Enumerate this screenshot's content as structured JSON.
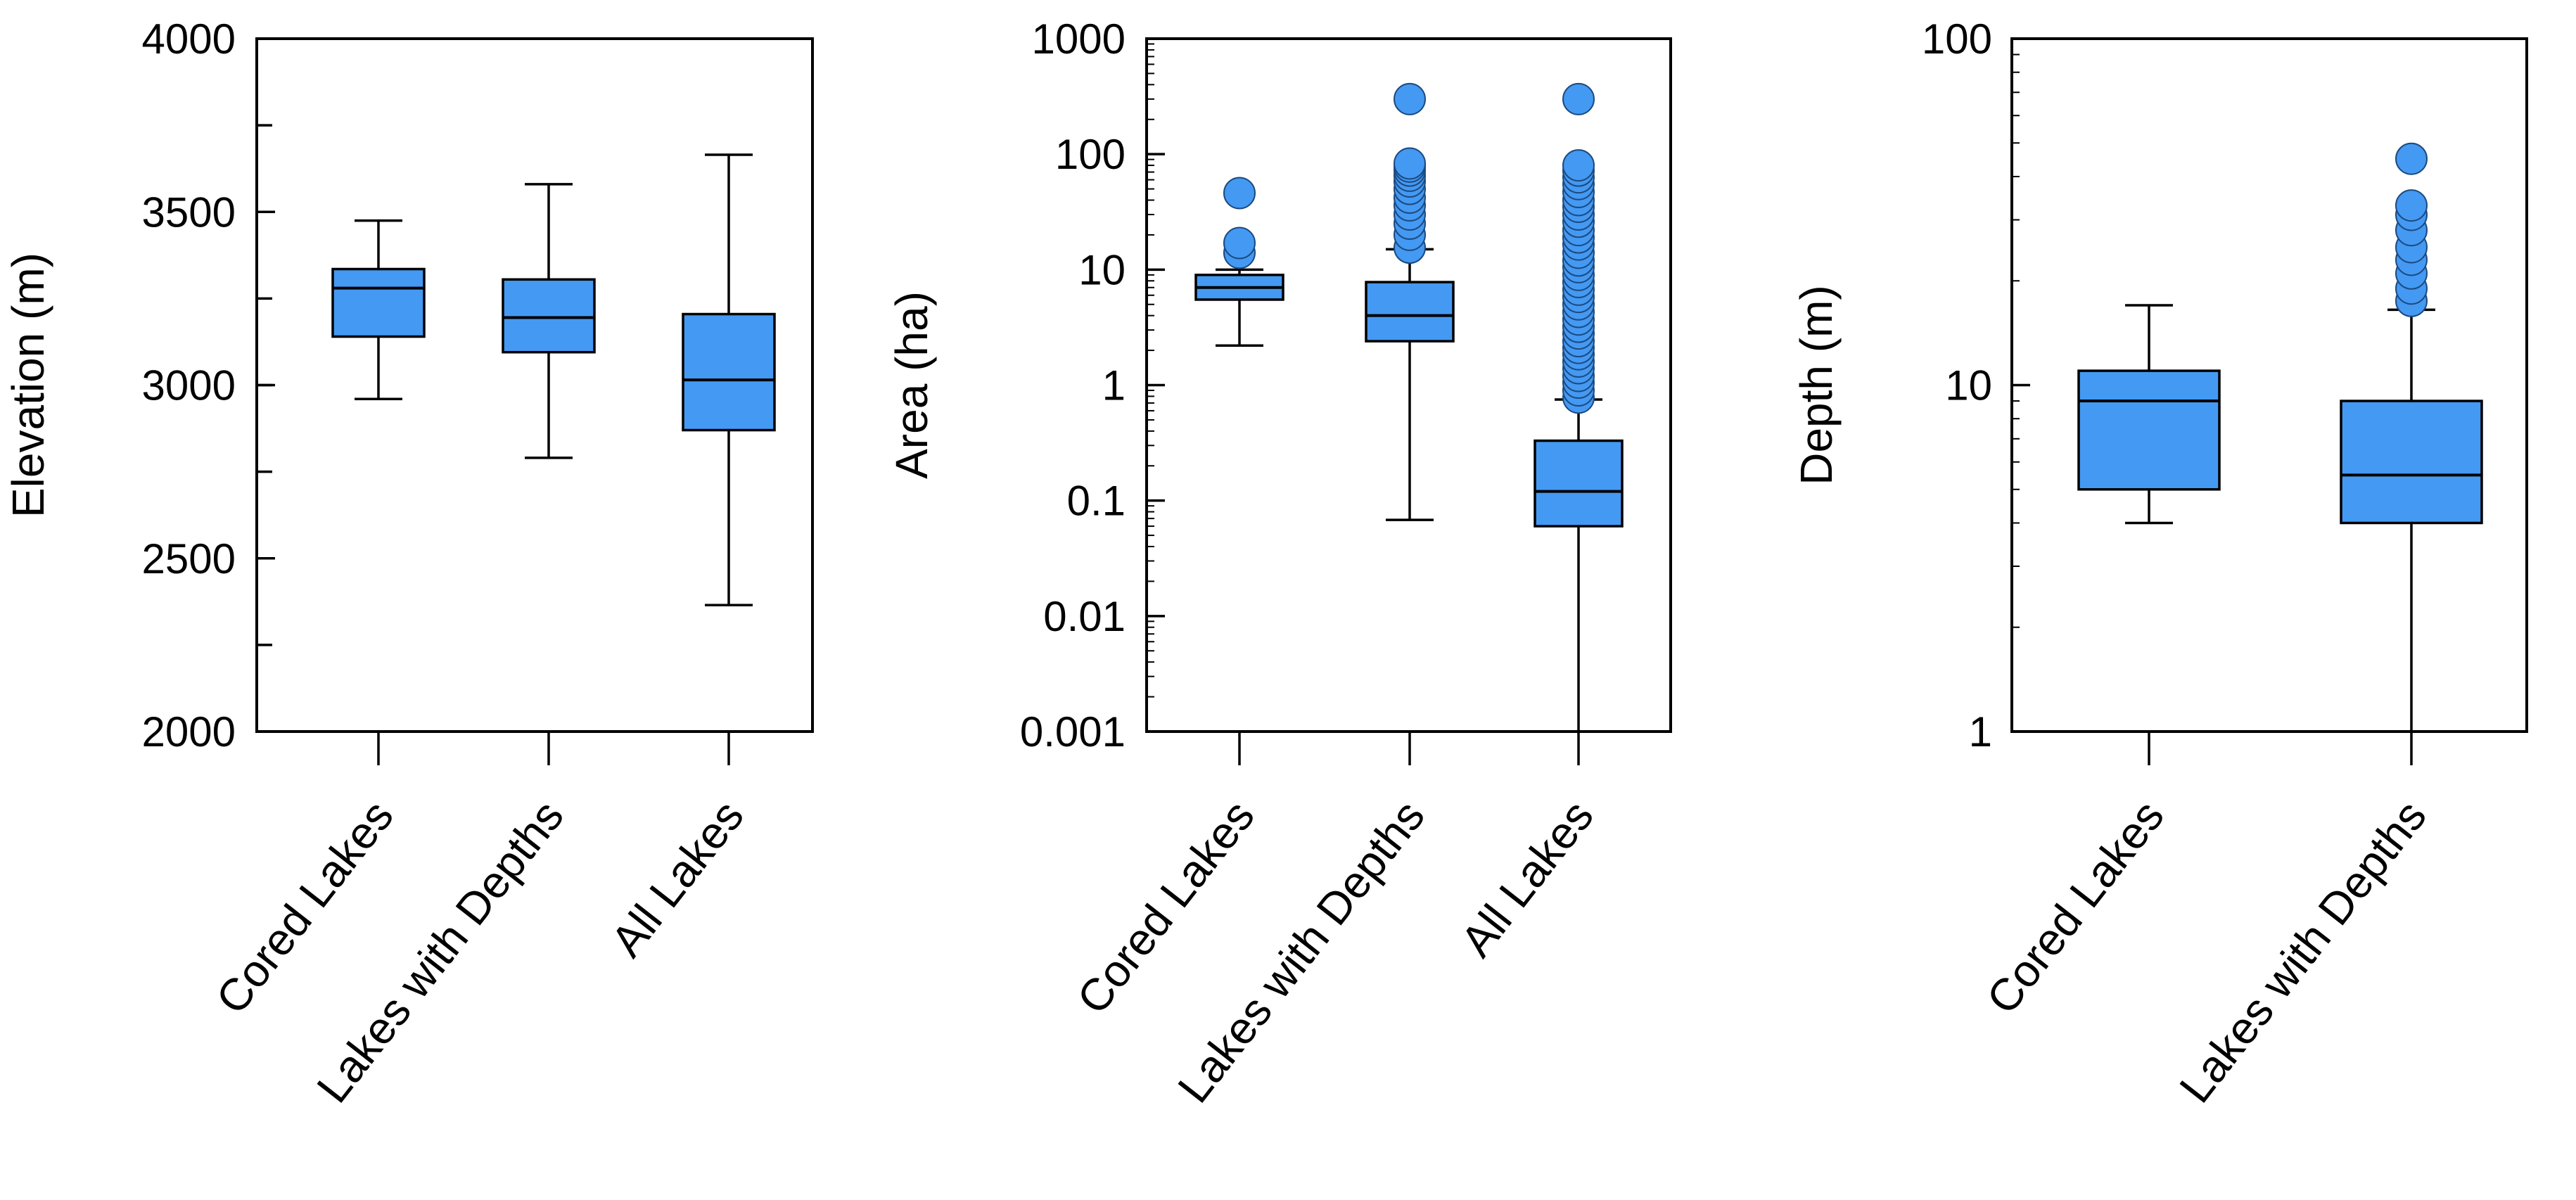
{
  "colors": {
    "box_fill": "#4499f2",
    "outlier_fill": "#4499f2",
    "line": "#000000"
  },
  "chart_data": [
    {
      "type": "box",
      "scale": "linear",
      "ylabel": "Elevation (m)",
      "ylim": [
        2000,
        4000
      ],
      "yticks": [
        2000,
        2500,
        3000,
        3500,
        4000
      ],
      "ytick_labels": [
        "2000",
        "2500",
        "3000",
        "3500",
        "4000"
      ],
      "minor_step": 250,
      "categories": [
        "Cored Lakes",
        "Lakes with Depths",
        "All Lakes"
      ],
      "boxes": [
        {
          "category": "Cored Lakes",
          "whisker_low": 2960,
          "q1": 3140,
          "median": 3280,
          "q3": 3335,
          "whisker_high": 3475,
          "outliers": []
        },
        {
          "category": "Lakes with Depths",
          "whisker_low": 2790,
          "q1": 3095,
          "median": 3195,
          "q3": 3305,
          "whisker_high": 3580,
          "outliers": []
        },
        {
          "category": "All Lakes",
          "whisker_low": 2365,
          "q1": 2870,
          "median": 3015,
          "q3": 3205,
          "whisker_high": 3665,
          "outliers": []
        }
      ]
    },
    {
      "type": "box",
      "scale": "log",
      "ylabel": "Area (ha)",
      "ylim": [
        0.001,
        1000
      ],
      "yticks": [
        0.001,
        0.01,
        0.1,
        1,
        10,
        100,
        1000
      ],
      "ytick_labels": [
        "0.001",
        "0.01",
        "0.1",
        "1",
        "10",
        "100",
        "1000"
      ],
      "categories": [
        "Cored Lakes",
        "Lakes with Depths",
        "All Lakes"
      ],
      "boxes": [
        {
          "category": "Cored Lakes",
          "whisker_low": 2.2,
          "q1": 5.5,
          "median": 7.0,
          "q3": 9.0,
          "whisker_high": 10,
          "outliers": [
            14,
            17,
            46
          ]
        },
        {
          "category": "Lakes with Depths",
          "whisker_low": 0.068,
          "q1": 2.4,
          "median": 4.0,
          "q3": 7.8,
          "whisker_high": 15,
          "outliers": [
            15.5,
            20,
            25,
            30,
            36,
            42,
            50,
            58,
            65,
            72,
            78,
            83,
            300
          ]
        },
        {
          "category": "All Lakes",
          "whisker_low": 0.001,
          "q1": 0.06,
          "median": 0.12,
          "q3": 0.33,
          "whisker_high": 0.75,
          "outliers": [
            0.78,
            0.9,
            1.05,
            1.2,
            1.4,
            1.6,
            1.85,
            2.1,
            2.4,
            2.8,
            3.2,
            3.7,
            4.3,
            5.0,
            5.8,
            6.7,
            7.8,
            9.0,
            10.5,
            12,
            14,
            16.5,
            19,
            22,
            26,
            30,
            35,
            40,
            47,
            55,
            63,
            72,
            80,
            300
          ]
        }
      ]
    },
    {
      "type": "box",
      "scale": "log",
      "ylabel": "Depth (m)",
      "ylim": [
        1,
        100
      ],
      "yticks": [
        1,
        10,
        100
      ],
      "ytick_labels": [
        "1",
        "10",
        "100"
      ],
      "categories": [
        "Cored Lakes",
        "Lakes with Depths"
      ],
      "boxes": [
        {
          "category": "Cored Lakes",
          "whisker_low": 4.0,
          "q1": 5.0,
          "median": 9.0,
          "q3": 11.0,
          "whisker_high": 17.0,
          "outliers": []
        },
        {
          "category": "Lakes with Depths",
          "whisker_low": 1.0,
          "q1": 4.0,
          "median": 5.5,
          "q3": 9.0,
          "whisker_high": 16.5,
          "outliers": [
            17.5,
            19,
            21,
            23,
            25,
            28,
            31,
            33,
            45
          ]
        }
      ]
    }
  ]
}
